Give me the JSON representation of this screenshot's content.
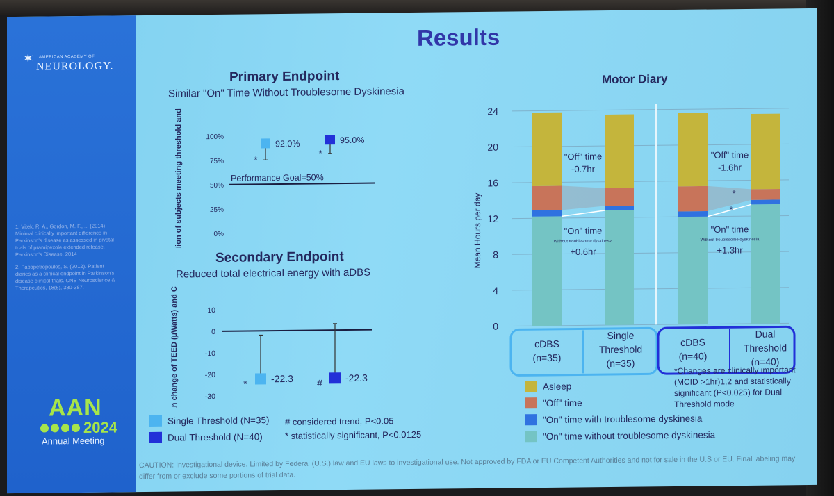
{
  "slide": {
    "title": "Results",
    "logo": {
      "small": "AMERICAN ACADEMY OF",
      "big": "NEUROLOGY."
    },
    "references": [
      "1. Vitek, R. A., Gordon, M. F., ... (2014) Minimal clinically important difference in Parkinson's disease as assessed in pivotal trials of pramipexole extended release. Parkinson's Disease, 2014",
      "2. Papapetropoulos, S. (2012). Patient diaries as a clinical endpoint in Parkinson's disease clinical trials. CNS Neuroscience & Therapeutics, 18(5), 380-387."
    ],
    "aan": {
      "mark": "AAN",
      "year": "2024",
      "sub": "Annual Meeting"
    },
    "caution": "CAUTION: Investigational device. Limited by Federal (U.S.) law and EU laws to investigational use. Not approved by FDA or EU Competent Authorities and not for sale in the U.S or EU. Final labeling may differ from or exclude some portions of trial data."
  },
  "primary": {
    "heading": "Primary Endpoint",
    "subheading": "Similar \"On\" Time Without Troublesome Dyskinesia"
  },
  "secondary": {
    "heading": "Secondary Endpoint",
    "subheading": "Reduced total electrical energy with aDBS"
  },
  "motor": {
    "heading": "Motor Diary"
  },
  "legend_left": {
    "single": "Single Threshold (N=35)",
    "dual": "Dual Threshold (N=40)",
    "note1": "# considered trend, P<0.05",
    "note2": "* statistically significant, P<0.0125"
  },
  "changes_note": "*Changes are clinically important (MCID >1hr)1,2 and statistically significant (P<0.025) for Dual Threshold mode",
  "legend_right": [
    {
      "label": "Asleep",
      "color": "#c4b53c"
    },
    {
      "label": "\"Off\" time",
      "color": "#c8745a"
    },
    {
      "label": "\"On\" time with troublesome dyskinesia",
      "color": "#2f72e0"
    },
    {
      "label": "\"On\" time without troublesome dyskinesia",
      "color": "#74c4c4"
    }
  ],
  "colors": {
    "single": "#4cb4f0",
    "dual": "#2230d8",
    "text": "#24285e"
  },
  "chart_data": [
    {
      "type": "scatter",
      "title": "Primary Endpoint",
      "subtitle": "Similar \"On\" Time Without Troublesome Dyskinesia",
      "ylabel": "Proportion of subjects meeting threshold and CL",
      "ylim": [
        0,
        100
      ],
      "yticks": [
        "0%",
        "25%",
        "50%",
        "75%",
        "100%"
      ],
      "reference_line": {
        "value": 50,
        "label": "Performance Goal=50%"
      },
      "series": [
        {
          "name": "Single Threshold (N=35)",
          "value": 92.0,
          "label": "92.0%",
          "ci_low": 75,
          "mark": "*"
        },
        {
          "name": "Dual Threshold (N=40)",
          "value": 95.0,
          "label": "95.0%",
          "ci_low": 81,
          "mark": "*"
        }
      ]
    },
    {
      "type": "scatter",
      "title": "Secondary Endpoint",
      "subtitle": "Reduced total electrical energy with aDBS",
      "ylabel": "Mean change of TEED (µWatts) and CL",
      "ylim": [
        -30,
        10
      ],
      "yticks": [
        "-30",
        "-20",
        "-10",
        "0",
        "10"
      ],
      "series": [
        {
          "name": "Single Threshold (N=35)",
          "value": -22.3,
          "label": "-22.3",
          "ci_high": -2,
          "mark": "*"
        },
        {
          "name": "Dual Threshold (N=40)",
          "value": -22.3,
          "label": "-22.3",
          "ci_high": 3,
          "mark": "#"
        }
      ]
    },
    {
      "type": "bar",
      "stacked": true,
      "title": "Motor Diary",
      "ylabel": "Mean Hours per day",
      "ylim": [
        0,
        24
      ],
      "yticks": [
        "0",
        "4",
        "8",
        "12",
        "16",
        "20",
        "24"
      ],
      "categories": [
        "cDBS (n=35)",
        "Single Threshold (n=35)",
        "cDBS (n=40)",
        "Dual Threshold (n=40)"
      ],
      "groups": [
        {
          "categories": [
            "cDBS (n=35)",
            "Single Threshold (n=35)"
          ]
        },
        {
          "categories": [
            "cDBS (n=40)",
            "Dual Threshold (n=40)"
          ]
        }
      ],
      "series": [
        {
          "name": "\"On\" time without troublesome dyskinesia",
          "color": "#74c4c4",
          "values": [
            12.2,
            12.8,
            12.0,
            13.3
          ]
        },
        {
          "name": "\"On\" time with troublesome dyskinesia",
          "color": "#2f72e0",
          "values": [
            0.7,
            0.5,
            0.6,
            0.5
          ]
        },
        {
          "name": "\"Off\" time",
          "color": "#c8745a",
          "values": [
            2.7,
            2.0,
            2.8,
            1.2
          ]
        },
        {
          "name": "Asleep",
          "color": "#c4b53c",
          "values": [
            8.2,
            8.2,
            8.2,
            8.4
          ]
        }
      ],
      "annotations": [
        {
          "text": "\"Off\" time",
          "value": "-0.7hr",
          "group": 1
        },
        {
          "text": "\"On\" time",
          "sub": "Without troublesome dyskinesia",
          "value": "+0.6hr",
          "group": 1
        },
        {
          "text": "\"Off\" time",
          "value": "-1.6hr",
          "group": 2,
          "mark": "*"
        },
        {
          "text": "\"On\" time",
          "sub": "Without troublesome dyskinesia",
          "value": "+1.3hr",
          "group": 2,
          "mark": "*"
        }
      ]
    }
  ]
}
